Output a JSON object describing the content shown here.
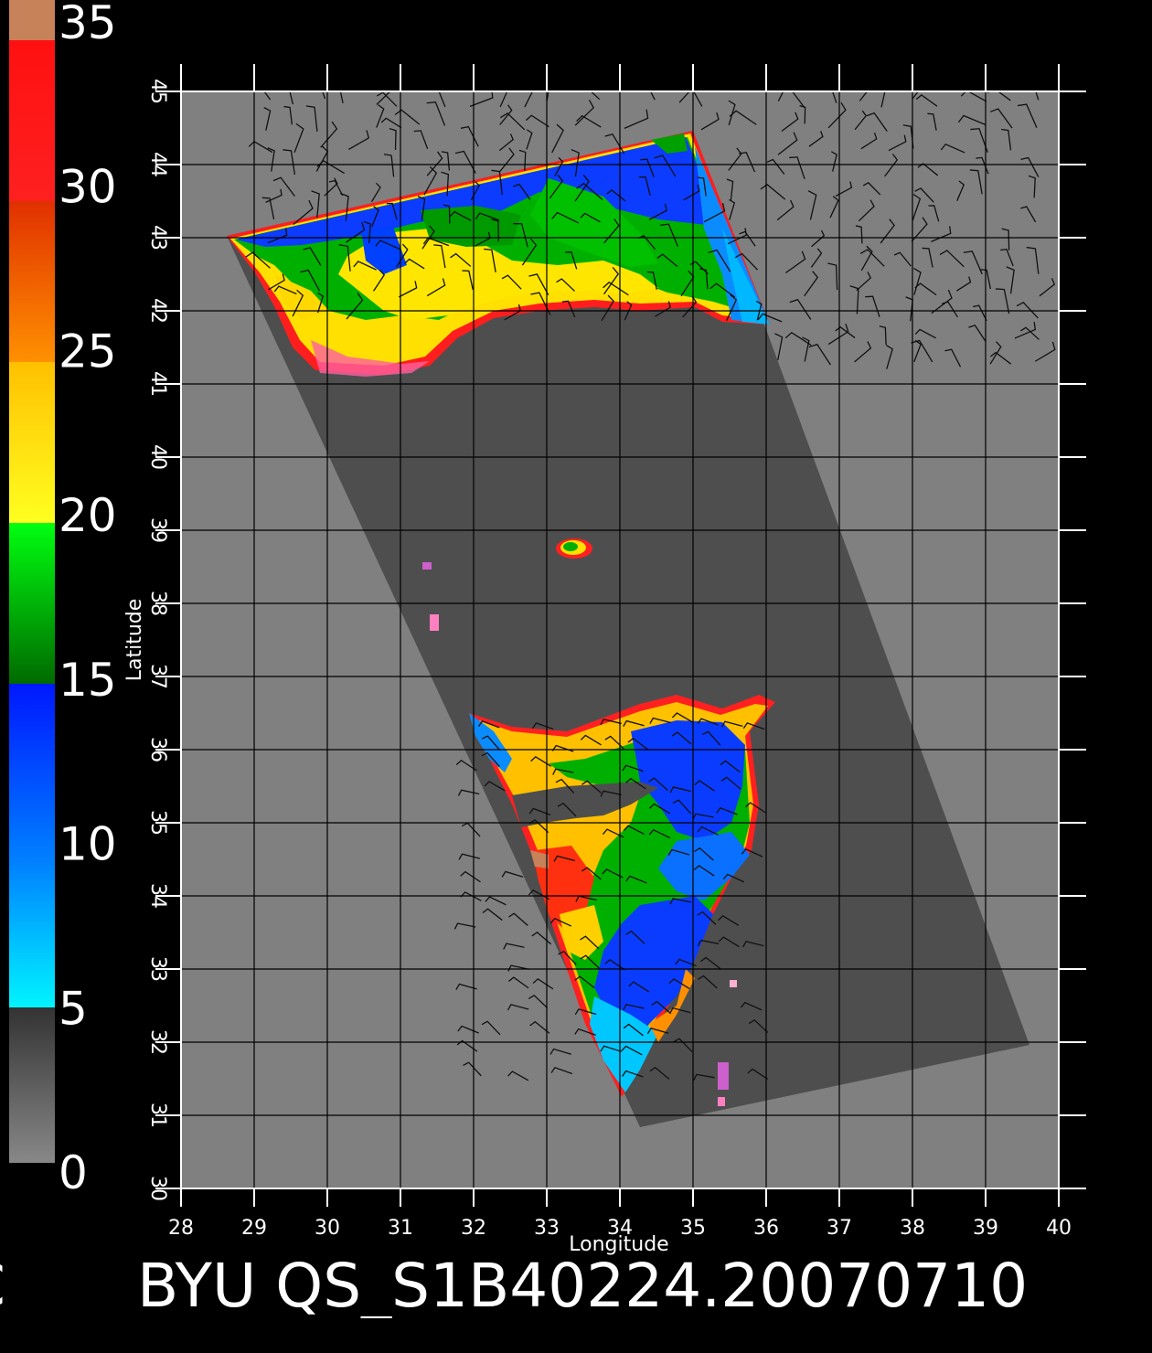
{
  "colorbar": {
    "labels": [
      "35",
      "30",
      "25",
      "20",
      "15",
      "10",
      "5",
      "0"
    ],
    "values": [
      35,
      30,
      25,
      20,
      15,
      10,
      5,
      0
    ],
    "colors": {
      "brown": "#c8825a",
      "red": "#ff1010",
      "orange": "#ff8c00",
      "yellow": "#ffe800",
      "green": "#00c000",
      "dark_green": "#007000",
      "blue": "#0030ff",
      "light_blue": "#0090ff",
      "cyan": "#00f0ff",
      "dark_gray": "#333333",
      "gray": "#808080"
    }
  },
  "map": {
    "x_ticks": [
      "28",
      "29",
      "30",
      "31",
      "32",
      "33",
      "34",
      "35",
      "36",
      "37",
      "38",
      "39",
      "40"
    ],
    "y_ticks": [
      "30",
      "31",
      "32",
      "33",
      "34",
      "35",
      "36",
      "37",
      "38",
      "39",
      "40",
      "41",
      "42",
      "43",
      "44",
      "45"
    ],
    "x_label": "Longitude",
    "y_label": "Latitude",
    "lon_range": [
      28,
      40
    ],
    "lat_range": [
      30,
      45
    ],
    "colors": {
      "background": "#808080",
      "swath": "#4e4e4e",
      "grid": "#000000",
      "frame": "#ffffff",
      "barb": "#111111"
    }
  },
  "title": {
    "left_fragment": "C",
    "text": "BYU  QS_S1B40224.20070710"
  }
}
